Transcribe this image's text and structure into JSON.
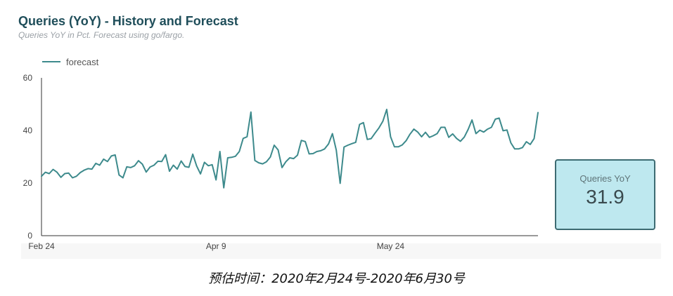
{
  "chart_data": {
    "type": "line",
    "title": "Queries (YoY) - History and Forecast",
    "subtitle": "Queries YoY in Pct. Forecast using go/fargo.",
    "legend": {
      "position": "top-left",
      "entries": [
        "forecast"
      ]
    },
    "ylim": [
      0,
      60
    ],
    "y_ticks": [
      0,
      20,
      40,
      60
    ],
    "x_tick_labels": [
      {
        "label": "Feb 24",
        "index": 0
      },
      {
        "label": "Apr 9",
        "index": 45
      },
      {
        "label": "May 24",
        "index": 90
      }
    ],
    "grid": false,
    "series": [
      {
        "name": "forecast",
        "color": "#3d8a8c",
        "values": [
          22.6,
          24.1,
          23.6,
          25.2,
          24.1,
          22.2,
          23.6,
          23.8,
          22.0,
          22.6,
          24.0,
          24.9,
          25.5,
          25.3,
          27.5,
          26.8,
          29.1,
          28.2,
          30.3,
          30.7,
          23.1,
          22.0,
          26.2,
          25.9,
          26.6,
          28.5,
          27.2,
          24.2,
          26.1,
          26.8,
          28.3,
          28.2,
          30.8,
          24.5,
          26.8,
          25.3,
          28.4,
          26.3,
          26.0,
          31.0,
          26.5,
          23.5,
          27.9,
          26.6,
          27.0,
          21.2,
          32.0,
          18.2,
          29.6,
          29.8,
          30.2,
          32.0,
          37.0,
          37.6,
          47.0,
          28.6,
          27.7,
          27.3,
          28.1,
          29.9,
          34.4,
          32.6,
          25.9,
          28.1,
          29.6,
          29.3,
          30.6,
          36.2,
          35.8,
          31.1,
          31.2,
          32.0,
          32.3,
          33.0,
          34.9,
          38.8,
          32.5,
          19.9,
          33.7,
          34.4,
          35.0,
          35.5,
          42.3,
          43.0,
          36.6,
          36.9,
          39.0,
          41.0,
          43.5,
          48.0,
          37.6,
          33.8,
          33.8,
          34.5,
          36.1,
          38.6,
          40.5,
          39.4,
          37.6,
          39.3,
          37.4,
          38.0,
          38.8,
          41.2,
          41.2,
          37.4,
          38.7,
          37.0,
          35.9,
          37.5,
          40.4,
          44.0,
          38.8,
          40.1,
          39.4,
          40.5,
          41.2,
          44.3,
          44.7,
          39.9,
          40.2,
          35.3,
          33.0,
          33.0,
          33.5,
          35.7,
          34.7,
          36.9,
          46.8
        ]
      }
    ]
  },
  "scorecard": {
    "label": "Queries YoY",
    "value": "31.9"
  },
  "caption": "预估时间：2020年2月24号-2020年6月30号",
  "colors": {
    "line": "#3d8a8c",
    "title": "#1f4e5a",
    "scorecard_bg": "#bee8ef",
    "scorecard_border": "#3d6b72"
  }
}
